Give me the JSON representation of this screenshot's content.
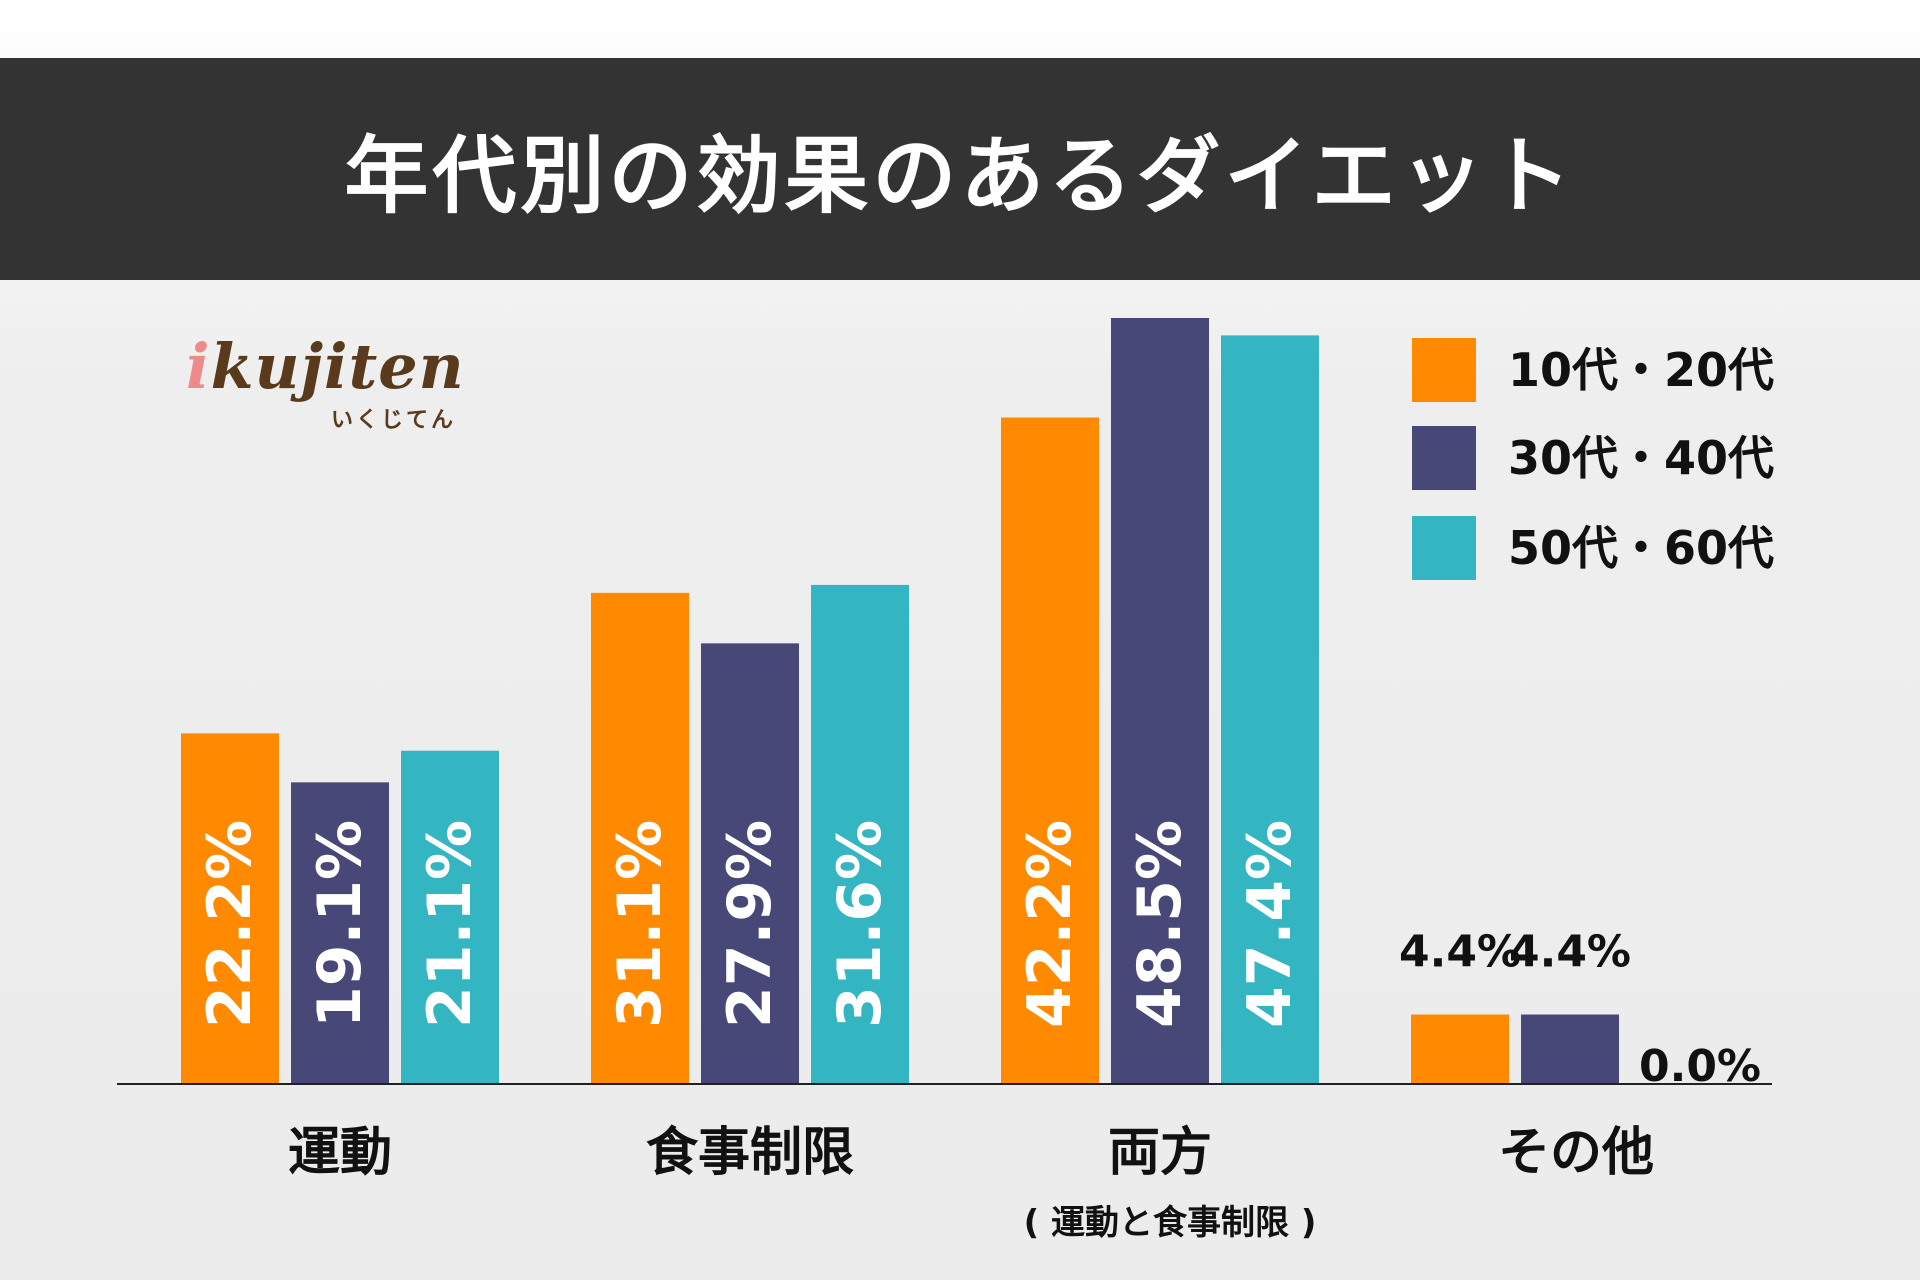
{
  "title": "年代別の効果のあるダイエット",
  "logo": {
    "main_i": "i",
    "main_rest": "kujiten",
    "sub": "いくじてん"
  },
  "colors": {
    "s1": "#ff8a00",
    "s2": "#484878",
    "s3": "#33b5c2",
    "title_bg": "#333333"
  },
  "legend": [
    {
      "label": "10代・20代",
      "color": "#ff8a00"
    },
    {
      "label": "30代・40代",
      "color": "#484878"
    },
    {
      "label": "50代・60代",
      "color": "#33b5c2"
    }
  ],
  "chart_data": {
    "type": "bar",
    "title": "年代別の効果のあるダイエット",
    "categories": [
      "運動",
      "食事制限",
      "両方",
      "その他"
    ],
    "category_sublabels": [
      "",
      "",
      "( 運動と食事制限 )",
      ""
    ],
    "series": [
      {
        "name": "10代・20代",
        "values": [
          22.2,
          31.1,
          42.2,
          4.4
        ],
        "color": "#ff8a00"
      },
      {
        "name": "30代・40代",
        "values": [
          19.1,
          27.9,
          48.5,
          4.4
        ],
        "color": "#484878"
      },
      {
        "name": "50代・60代",
        "values": [
          21.1,
          31.6,
          47.4,
          0.0
        ],
        "color": "#33b5c2"
      }
    ],
    "value_labels": [
      [
        "22.2%",
        "19.1%",
        "21.1%"
      ],
      [
        "31.1%",
        "27.9%",
        "31.6%"
      ],
      [
        "42.2%",
        "48.5%",
        "47.4%"
      ],
      [
        "4.4%",
        "4.4%",
        "0.0%"
      ]
    ],
    "ylim": [
      0,
      48.5
    ],
    "grid": false,
    "legend_position": "top-right"
  }
}
